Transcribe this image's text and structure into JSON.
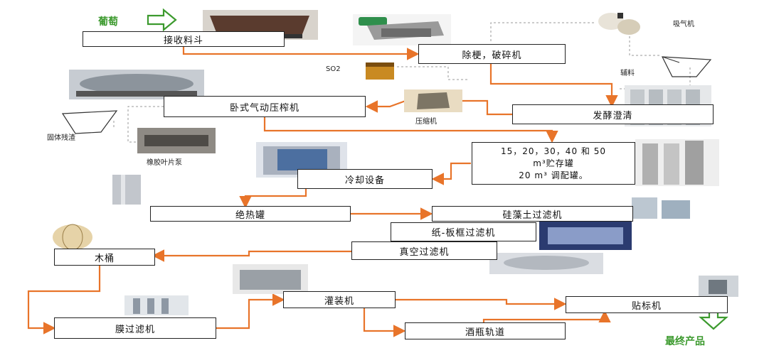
{
  "steps": {
    "hopper": "接收料斗",
    "destem": "除梗，破碎机",
    "press": "卧式气动压榨机",
    "ferment": "发酵澄清",
    "storage_l1": "15，20，30，40 和 50",
    "storage_l2": "m³贮存罐",
    "storage_l3": "20 m³ 调配罐。",
    "cooling": "冷却设备",
    "insulated": "绝热罐",
    "diatom": "硅藻土过滤机",
    "plate": "纸-板框过滤机",
    "vacuum": "真空过滤机",
    "barrel": "木桶",
    "membrane": "膜过滤机",
    "filling": "灌装机",
    "labeling": "贴标机",
    "bottle_track": "酒瓶轨道"
  },
  "labels": {
    "grape": "葡萄",
    "so2": "SO2",
    "compressor": "压缩机",
    "gas": "吸气机",
    "ingredients": "辅料",
    "solid_liquid": "固体残渣",
    "rubber_pump": "橡胶叶片泵",
    "final": "最终产品"
  },
  "colors": {
    "flow": "#e8742a",
    "green": "#3c9a2e",
    "border": "#222222"
  }
}
